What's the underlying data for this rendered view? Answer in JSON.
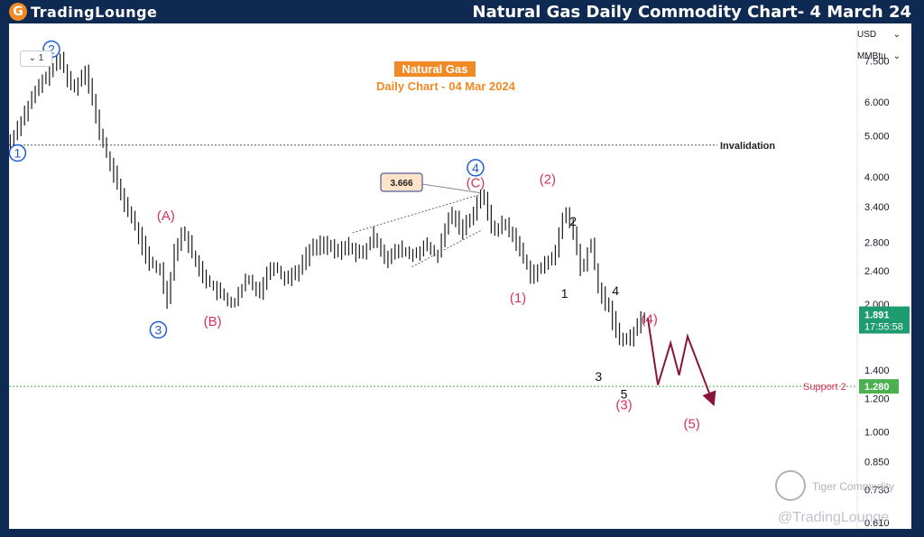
{
  "header": {
    "logo_glyph": "G",
    "logo_text": "TradingLounge",
    "title": "Natural Gas Daily Commodity Chart- 4 March 24"
  },
  "toolbar": {
    "interval_label": "1",
    "chevron": "⌄"
  },
  "right_panel": {
    "currency": "USD",
    "unit": "MMBtu"
  },
  "watermark": {
    "line1": "Tiger Commodity",
    "line2": "@TradingLounge"
  },
  "chart_data": {
    "type": "candlestick",
    "title": "Natural Gas",
    "subtitle": "Daily Chart - 04 Mar 2024",
    "y_scale": "log",
    "ylim": [
      0.59,
      9.2
    ],
    "y_ticks": [
      "7.500",
      "6.000",
      "5.000",
      "4.000",
      "3.400",
      "2.800",
      "2.400",
      "2.000",
      "1.400",
      "1.200",
      "1.000",
      "0.850",
      "0.730",
      "0.610"
    ],
    "y_tick_values": [
      7.5,
      6.0,
      5.0,
      4.0,
      3.4,
      2.8,
      2.4,
      2.0,
      1.4,
      1.2,
      1.0,
      0.85,
      0.73,
      0.61
    ],
    "x_range": [
      0,
      100
    ],
    "price_path": [
      [
        0,
        4.8
      ],
      [
        1.5,
        5.5
      ],
      [
        3,
        6.3
      ],
      [
        4.5,
        7.0
      ],
      [
        6,
        7.6
      ],
      [
        7.5,
        6.4
      ],
      [
        9,
        7.2
      ],
      [
        10.5,
        5.2
      ],
      [
        12,
        4.2
      ],
      [
        13.5,
        3.5
      ],
      [
        15,
        3.0
      ],
      [
        16.5,
        2.5
      ],
      [
        18,
        2.4
      ],
      [
        18.5,
        1.98
      ],
      [
        19.5,
        2.7
      ],
      [
        20.5,
        3.0
      ],
      [
        22,
        2.5
      ],
      [
        23.5,
        2.25
      ],
      [
        25,
        2.1
      ],
      [
        26.5,
        2.0
      ],
      [
        28,
        2.3
      ],
      [
        29.5,
        2.15
      ],
      [
        31,
        2.5
      ],
      [
        32.5,
        2.3
      ],
      [
        34,
        2.4
      ],
      [
        35.5,
        2.7
      ],
      [
        37,
        2.8
      ],
      [
        38.5,
        2.65
      ],
      [
        40,
        2.75
      ],
      [
        41.5,
        2.6
      ],
      [
        43,
        2.9
      ],
      [
        44.5,
        2.55
      ],
      [
        46,
        2.7
      ],
      [
        47.5,
        2.6
      ],
      [
        49,
        2.75
      ],
      [
        50.5,
        2.6
      ],
      [
        52,
        3.3
      ],
      [
        53.5,
        3.0
      ],
      [
        55,
        3.4
      ],
      [
        55.7,
        3.68
      ],
      [
        57,
        3.0
      ],
      [
        58.5,
        3.1
      ],
      [
        60,
        2.75
      ],
      [
        61.5,
        2.35
      ],
      [
        63,
        2.45
      ],
      [
        64.5,
        2.7
      ],
      [
        65.5,
        3.35
      ],
      [
        66.5,
        2.95
      ],
      [
        67.5,
        2.35
      ],
      [
        68.5,
        2.85
      ],
      [
        69.5,
        2.15
      ],
      [
        70.5,
        2.0
      ],
      [
        71.5,
        1.75
      ],
      [
        72.5,
        1.62
      ],
      [
        73.5,
        1.7
      ],
      [
        74.5,
        1.85
      ],
      [
        75,
        1.891
      ]
    ],
    "last_price": "1.891",
    "countdown": "17:55:58",
    "projection": [
      [
        75.3,
        1.86
      ],
      [
        76.5,
        1.29
      ],
      [
        78,
        1.62
      ],
      [
        79,
        1.36
      ],
      [
        80,
        1.68
      ],
      [
        83,
        1.17
      ]
    ],
    "invalidation": {
      "value": 4.75,
      "label": "Invalidation"
    },
    "support": {
      "value": 1.28,
      "label": "Support 2",
      "tag": "1.280"
    },
    "channel": {
      "upper": [
        [
          40.5,
          2.95
        ],
        [
          55.5,
          3.63
        ]
      ],
      "lower": [
        [
          47.5,
          2.45
        ],
        [
          55.8,
          3.0
        ]
      ]
    },
    "callout": {
      "text": "3.666",
      "at": [
        55.5,
        3.666
      ]
    },
    "wave_labels": [
      {
        "text": "1",
        "x": 1,
        "y": 4.55,
        "style": "circle"
      },
      {
        "text": "2",
        "x": 5,
        "y": 8.0,
        "style": "circle"
      },
      {
        "text": "3",
        "x": 17.6,
        "y": 1.74,
        "style": "circle"
      },
      {
        "text": "4",
        "x": 55,
        "y": 4.2,
        "style": "circle"
      },
      {
        "text": "(A)",
        "x": 18.5,
        "y": 3.16,
        "style": "red"
      },
      {
        "text": "(B)",
        "x": 24,
        "y": 1.78,
        "style": "red"
      },
      {
        "text": "(C)",
        "x": 55,
        "y": 3.78,
        "style": "red"
      },
      {
        "text": "(1)",
        "x": 60,
        "y": 2.02,
        "style": "red"
      },
      {
        "text": "(2)",
        "x": 63.5,
        "y": 3.85,
        "style": "red"
      },
      {
        "text": "(3)",
        "x": 72.5,
        "y": 1.13,
        "style": "red"
      },
      {
        "text": "(4)",
        "x": 75.5,
        "y": 1.8,
        "style": "red"
      },
      {
        "text": "(5)",
        "x": 80.5,
        "y": 1.02,
        "style": "red"
      },
      {
        "text": "1",
        "x": 65.5,
        "y": 2.07,
        "style": "black"
      },
      {
        "text": "2",
        "x": 66.5,
        "y": 3.07,
        "style": "black"
      },
      {
        "text": "3",
        "x": 69.5,
        "y": 1.32,
        "style": "black"
      },
      {
        "text": "4",
        "x": 71.5,
        "y": 2.1,
        "style": "black"
      },
      {
        "text": "5",
        "x": 72.5,
        "y": 1.2,
        "style": "black"
      }
    ]
  },
  "colors": {
    "frame": "#0e2a52",
    "accent_orange": "#f08a24",
    "wave_blue": "#1e5bd8",
    "wave_red": "#d8325a",
    "projection": "#8a1538",
    "support_green": "#4caf50",
    "price_tag_green": "#1e9c70",
    "bars": "#1a1a1a"
  }
}
